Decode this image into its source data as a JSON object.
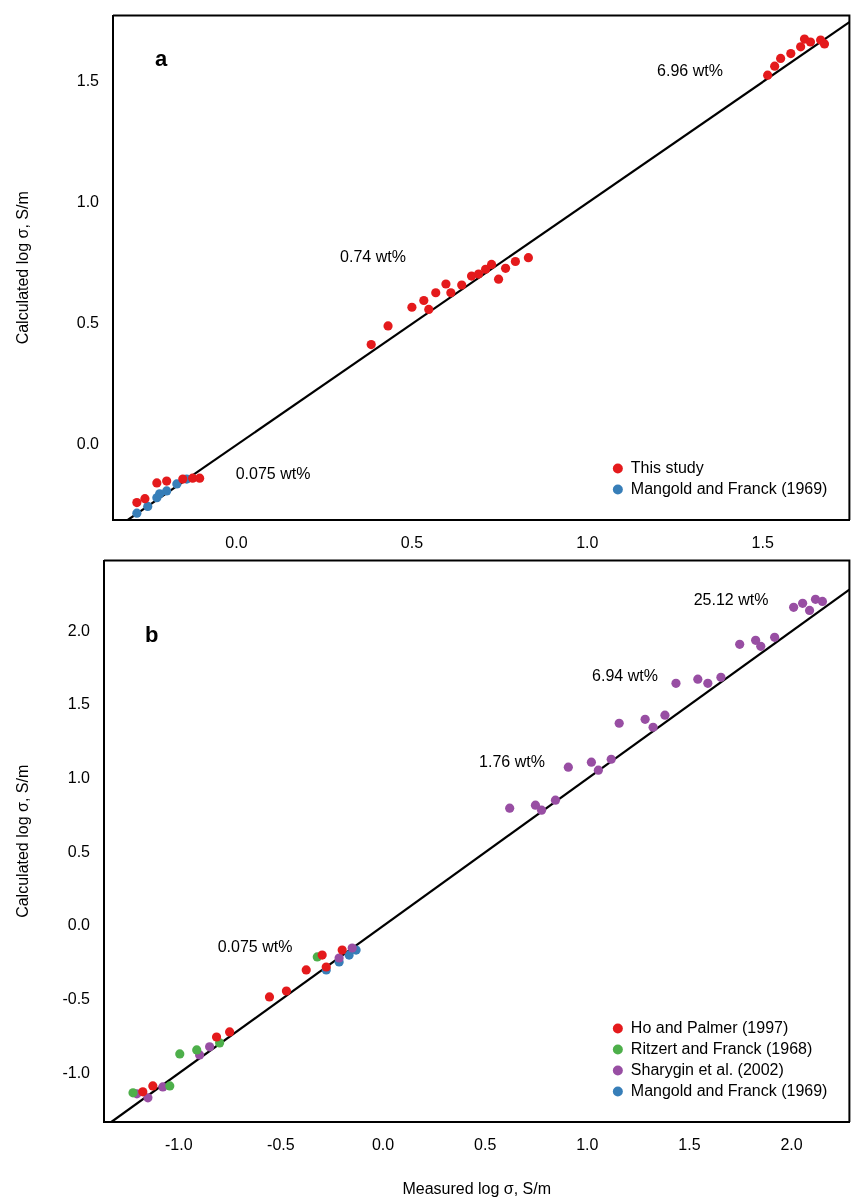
{
  "chart_data": [
    {
      "type": "scatter",
      "title": "a",
      "ylabel": "Calculated log σ, S/m",
      "xlim": [
        -0.352,
        1.747
      ],
      "ylim": [
        -0.31,
        1.774
      ],
      "xticks": [
        {
          "value": 0,
          "label": "0.0"
        },
        0.5,
        {
          "value": 1,
          "label": "1.0"
        },
        1.5
      ],
      "yticks": [
        {
          "value": 0,
          "label": "0.0"
        },
        0.5,
        {
          "value": 1,
          "label": "1.0"
        },
        1.5
      ],
      "grid": false,
      "legend": "bottom right",
      "marker": "circle",
      "series": [
        {
          "name": "This study",
          "color": "#e41a1c",
          "x": [
            -0.284,
            -0.261,
            -0.227,
            -0.199,
            -0.153,
            -0.125,
            -0.105,
            0.384,
            0.432,
            0.5,
            0.534,
            0.548,
            0.568,
            0.597,
            0.611,
            0.642,
            0.67,
            0.69,
            0.71,
            0.727,
            0.747,
            0.767,
            0.795,
            0.832,
            1.514,
            1.534,
            1.551,
            1.58,
            1.608,
            1.619,
            1.636,
            1.665,
            1.676
          ],
          "values": [
            -0.238,
            -0.222,
            -0.157,
            -0.149,
            -0.141,
            -0.137,
            -0.137,
            0.415,
            0.492,
            0.569,
            0.597,
            0.56,
            0.629,
            0.665,
            0.629,
            0.661,
            0.698,
            0.706,
            0.726,
            0.746,
            0.685,
            0.73,
            0.758,
            0.774,
            1.528,
            1.565,
            1.597,
            1.617,
            1.645,
            1.677,
            1.665,
            1.673,
            1.657
          ]
        },
        {
          "name": "Mangold and Franck (1969)",
          "color": "#377eb8",
          "x": [
            -0.284,
            -0.253,
            -0.227,
            -0.219,
            -0.199,
            -0.17,
            -0.142
          ],
          "values": [
            -0.282,
            -0.254,
            -0.218,
            -0.202,
            -0.19,
            -0.161,
            -0.141
          ]
        },
        {
          "type": "line",
          "color": "#000000",
          "marker": "none",
          "x": [
            -0.31,
            1.747
          ],
          "values": [
            -0.31,
            1.747
          ]
        }
      ],
      "annotations": [
        "6.96 wt%",
        "0.74 wt%",
        "0.075 wt%"
      ]
    },
    {
      "type": "scatter",
      "title": "b",
      "xlabel": "Measured log σ, S/m",
      "ylabel": "Calculated log σ, S/m",
      "xlim": [
        -1.366,
        2.283
      ],
      "ylim": [
        -1.33,
        2.48
      ],
      "xticks": [
        {
          "value": -1,
          "label": "-1.0"
        },
        -0.5,
        {
          "value": 0,
          "label": "0.0"
        },
        0.5,
        {
          "value": 1,
          "label": "1.0"
        },
        1.5,
        {
          "value": 2,
          "label": "2.0"
        }
      ],
      "yticks": [
        {
          "value": -1,
          "label": "-1.0"
        },
        -0.5,
        {
          "value": 0,
          "label": "0.0"
        },
        0.5,
        {
          "value": 1,
          "label": "1.0"
        },
        1.5,
        {
          "value": 2,
          "label": "2.0"
        }
      ],
      "grid": false,
      "legend": "bottom right",
      "marker": "circle",
      "series": [
        {
          "name": "Ho and Palmer (1997)",
          "color": "#e41a1c",
          "x": [
            -1.176,
            -1.127,
            -0.815,
            -0.751,
            -0.556,
            -0.473,
            -0.376,
            -0.298,
            -0.278,
            -0.2
          ],
          "values": [
            -1.125,
            -1.085,
            -0.753,
            -0.719,
            -0.481,
            -0.441,
            -0.298,
            -0.197,
            -0.278,
            -0.163
          ]
        },
        {
          "name": "Ritzert and Franck (1968)",
          "color": "#4daf4a",
          "x": [
            -1.224,
            -1.044,
            -0.995,
            -0.912,
            -0.8,
            -0.322
          ],
          "values": [
            -1.132,
            -1.085,
            -0.868,
            -0.841,
            -0.793,
            -0.21
          ]
        },
        {
          "name": "Sharygin et al. (2002)",
          "color": "#984ea3",
          "x": [
            -1.205,
            -1.151,
            -1.078,
            -0.898,
            -0.849,
            -0.215,
            -0.151,
            0.62,
            0.746,
            0.776,
            0.844,
            0.907,
            1.02,
            1.054,
            1.117,
            1.156,
            1.283,
            1.322,
            1.38,
            1.434,
            1.541,
            1.59,
            1.654,
            1.746,
            1.824,
            1.849,
            1.917,
            2.01,
            2.054,
            2.088,
            2.117,
            2.151
          ],
          "values": [
            -1.139,
            -1.166,
            -1.092,
            -0.875,
            -0.82,
            -0.217,
            -0.149,
            0.8,
            0.82,
            0.786,
            0.854,
            1.078,
            1.112,
            1.058,
            1.132,
            1.376,
            1.403,
            1.349,
            1.431,
            1.647,
            1.675,
            1.647,
            1.688,
            1.912,
            1.939,
            1.898,
            1.959,
            2.163,
            2.19,
            2.142,
            2.217,
            2.203
          ]
        },
        {
          "name": "Mangold and Franck (1969)",
          "color": "#377eb8",
          "x": [
            -0.278,
            -0.215,
            -0.166,
            -0.132
          ],
          "values": [
            -0.298,
            -0.244,
            -0.197,
            -0.163
          ]
        },
        {
          "type": "line",
          "color": "#000000",
          "marker": "none",
          "x": [
            -1.33,
            2.283
          ],
          "values": [
            -1.33,
            2.283
          ]
        }
      ],
      "annotations": [
        "25.12 wt%",
        "6.94 wt%",
        "1.76 wt%",
        "0.075 wt%"
      ]
    }
  ]
}
